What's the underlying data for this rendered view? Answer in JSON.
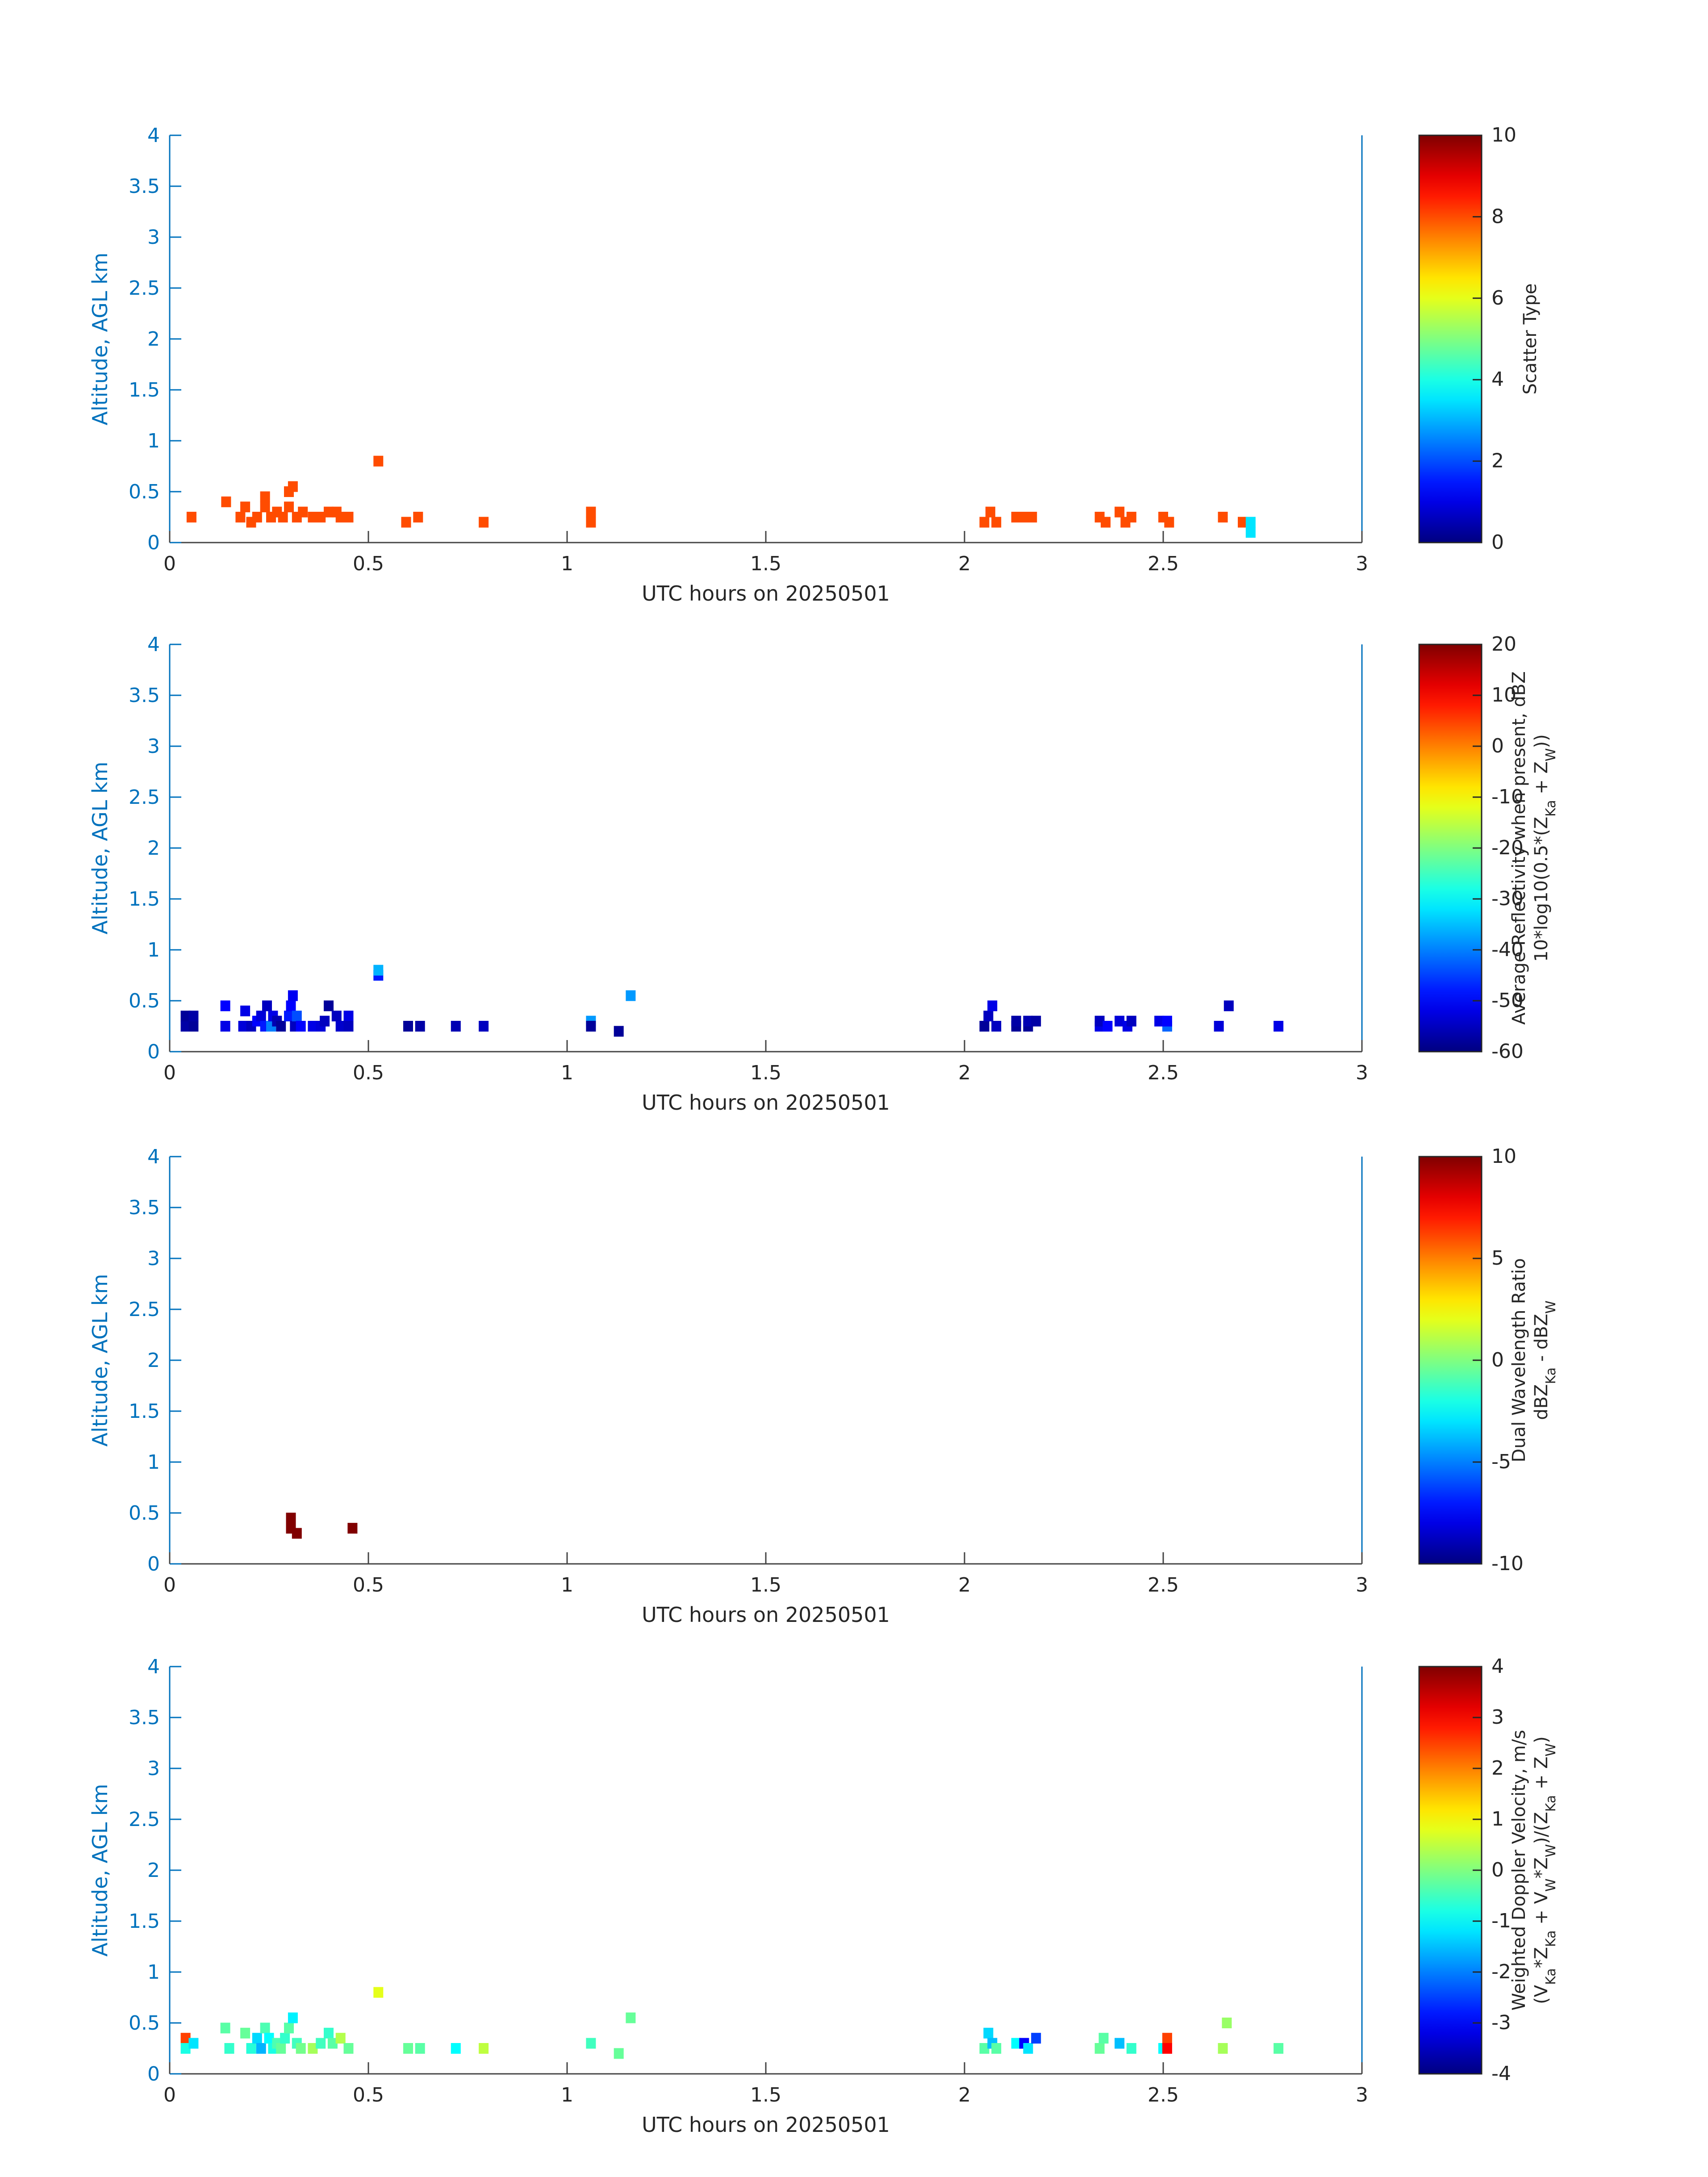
{
  "colors": {
    "axis_blue": "#0072bd",
    "tick_text_dark": "#262626",
    "background": "#ffffff"
  },
  "chart_data": [
    {
      "type": "heatmap",
      "xlabel": "UTC hours on 20250501",
      "ylabel": "Altitude, AGL km",
      "xlim": [
        0,
        3
      ],
      "ylim": [
        0,
        4
      ],
      "xticks": [
        "0",
        "0.5",
        "1",
        "1.5",
        "2",
        "2.5",
        "3"
      ],
      "yticks": [
        "0",
        "0.5",
        "1",
        "1.5",
        "2",
        "2.5",
        "3",
        "3.5",
        "4"
      ],
      "colormap": "jet",
      "clim": [
        0,
        10
      ],
      "colorbar_ticks": [
        "0",
        "2",
        "4",
        "6",
        "8",
        "10"
      ],
      "colorbar_label_lines": [
        "Scatter Type"
      ],
      "cells": [
        [
          0.055,
          0.25,
          8
        ],
        [
          0.142,
          0.4,
          8
        ],
        [
          0.178,
          0.25,
          8
        ],
        [
          0.19,
          0.35,
          8
        ],
        [
          0.205,
          0.2,
          8
        ],
        [
          0.22,
          0.25,
          8
        ],
        [
          0.24,
          0.35,
          8
        ],
        [
          0.24,
          0.45,
          8
        ],
        [
          0.255,
          0.25,
          8
        ],
        [
          0.27,
          0.3,
          8
        ],
        [
          0.285,
          0.25,
          8
        ],
        [
          0.3,
          0.35,
          8
        ],
        [
          0.3,
          0.5,
          8
        ],
        [
          0.31,
          0.55,
          8
        ],
        [
          0.32,
          0.25,
          8
        ],
        [
          0.335,
          0.3,
          8
        ],
        [
          0.36,
          0.25,
          8
        ],
        [
          0.38,
          0.25,
          8
        ],
        [
          0.4,
          0.3,
          8
        ],
        [
          0.42,
          0.3,
          8
        ],
        [
          0.43,
          0.25,
          8
        ],
        [
          0.45,
          0.25,
          8
        ],
        [
          0.525,
          0.8,
          8
        ],
        [
          0.595,
          0.2,
          8
        ],
        [
          0.625,
          0.25,
          8
        ],
        [
          0.79,
          0.2,
          8
        ],
        [
          1.06,
          0.3,
          8
        ],
        [
          1.06,
          0.2,
          8
        ],
        [
          2.05,
          0.2,
          8
        ],
        [
          2.065,
          0.3,
          8
        ],
        [
          2.08,
          0.2,
          8
        ],
        [
          2.13,
          0.25,
          8
        ],
        [
          2.15,
          0.25,
          8
        ],
        [
          2.17,
          0.25,
          8
        ],
        [
          2.34,
          0.25,
          8
        ],
        [
          2.355,
          0.2,
          8
        ],
        [
          2.39,
          0.3,
          8
        ],
        [
          2.405,
          0.2,
          8
        ],
        [
          2.42,
          0.25,
          8
        ],
        [
          2.5,
          0.25,
          8
        ],
        [
          2.515,
          0.2,
          8
        ],
        [
          2.65,
          0.25,
          8
        ],
        [
          2.7,
          0.2,
          8
        ],
        [
          2.72,
          0.2,
          3.5
        ],
        [
          2.72,
          0.1,
          3.5
        ]
      ]
    },
    {
      "type": "heatmap",
      "xlabel": "UTC hours on 20250501",
      "ylabel": "Altitude, AGL km",
      "xlim": [
        0,
        3
      ],
      "ylim": [
        0,
        4
      ],
      "xticks": [
        "0",
        "0.5",
        "1",
        "1.5",
        "2",
        "2.5",
        "3"
      ],
      "yticks": [
        "0",
        "0.5",
        "1",
        "1.5",
        "2",
        "2.5",
        "3",
        "3.5",
        "4"
      ],
      "colormap": "jet",
      "clim": [
        -60,
        20
      ],
      "colorbar_ticks": [
        "-60",
        "-50",
        "-40",
        "-30",
        "-20",
        "-10",
        "0",
        "10",
        "20"
      ],
      "colorbar_label_lines": [
        "Average Reflectivity when present, dBZ",
        "10*log10(0.5*(Z_Ka + Z_W))"
      ],
      "cells": [
        [
          0.04,
          0.25,
          -57
        ],
        [
          0.04,
          0.35,
          -58
        ],
        [
          0.06,
          0.25,
          -58
        ],
        [
          0.06,
          0.35,
          -57
        ],
        [
          0.14,
          0.25,
          -52
        ],
        [
          0.14,
          0.45,
          -50
        ],
        [
          0.185,
          0.25,
          -53
        ],
        [
          0.19,
          0.4,
          -52
        ],
        [
          0.205,
          0.25,
          -55
        ],
        [
          0.22,
          0.3,
          -50
        ],
        [
          0.23,
          0.35,
          -53
        ],
        [
          0.24,
          0.25,
          -48
        ],
        [
          0.245,
          0.45,
          -55
        ],
        [
          0.255,
          0.25,
          -40
        ],
        [
          0.26,
          0.35,
          -52
        ],
        [
          0.27,
          0.3,
          -56
        ],
        [
          0.28,
          0.25,
          -58
        ],
        [
          0.3,
          0.35,
          -48
        ],
        [
          0.305,
          0.45,
          -50
        ],
        [
          0.31,
          0.55,
          -51
        ],
        [
          0.315,
          0.25,
          -55
        ],
        [
          0.32,
          0.35,
          -44
        ],
        [
          0.33,
          0.25,
          -50
        ],
        [
          0.36,
          0.25,
          -52
        ],
        [
          0.38,
          0.25,
          -53
        ],
        [
          0.39,
          0.3,
          -55
        ],
        [
          0.4,
          0.45,
          -58
        ],
        [
          0.42,
          0.35,
          -55
        ],
        [
          0.43,
          0.25,
          -54
        ],
        [
          0.45,
          0.35,
          -52
        ],
        [
          0.45,
          0.25,
          -55
        ],
        [
          0.525,
          0.75,
          -48
        ],
        [
          0.525,
          0.8,
          -36
        ],
        [
          0.6,
          0.25,
          -58
        ],
        [
          0.63,
          0.25,
          -57
        ],
        [
          0.72,
          0.25,
          -56
        ],
        [
          0.79,
          0.25,
          -55
        ],
        [
          1.06,
          0.3,
          -38
        ],
        [
          1.06,
          0.25,
          -58
        ],
        [
          1.13,
          0.2,
          -58
        ],
        [
          1.16,
          0.55,
          -38
        ],
        [
          2.05,
          0.25,
          -58
        ],
        [
          2.06,
          0.35,
          -55
        ],
        [
          2.07,
          0.45,
          -52
        ],
        [
          2.08,
          0.25,
          -55
        ],
        [
          2.13,
          0.25,
          -58
        ],
        [
          2.13,
          0.3,
          -57
        ],
        [
          2.16,
          0.25,
          -58
        ],
        [
          2.16,
          0.3,
          -56
        ],
        [
          2.18,
          0.3,
          -57
        ],
        [
          2.34,
          0.25,
          -52
        ],
        [
          2.34,
          0.3,
          -55
        ],
        [
          2.36,
          0.25,
          -50
        ],
        [
          2.39,
          0.3,
          -53
        ],
        [
          2.41,
          0.25,
          -52
        ],
        [
          2.42,
          0.3,
          -55
        ],
        [
          2.49,
          0.3,
          -52
        ],
        [
          2.51,
          0.25,
          -42
        ],
        [
          2.51,
          0.3,
          -50
        ],
        [
          2.64,
          0.25,
          -53
        ],
        [
          2.665,
          0.45,
          -55
        ],
        [
          2.79,
          0.25,
          -52
        ]
      ]
    },
    {
      "type": "heatmap",
      "xlabel": "UTC hours on 20250501",
      "ylabel": "Altitude, AGL km",
      "xlim": [
        0,
        3
      ],
      "ylim": [
        0,
        4
      ],
      "xticks": [
        "0",
        "0.5",
        "1",
        "1.5",
        "2",
        "2.5",
        "3"
      ],
      "yticks": [
        "0",
        "0.5",
        "1",
        "1.5",
        "2",
        "2.5",
        "3",
        "3.5",
        "4"
      ],
      "colormap": "jet",
      "clim": [
        -10,
        10
      ],
      "colorbar_ticks": [
        "-10",
        "-5",
        "0",
        "5",
        "10"
      ],
      "colorbar_label_lines": [
        "Dual Wavelength Ratio",
        "dBZ_Ka - dBZ_W"
      ],
      "cells": [
        [
          0.305,
          0.45,
          10
        ],
        [
          0.305,
          0.35,
          10
        ],
        [
          0.32,
          0.3,
          10
        ],
        [
          0.46,
          0.35,
          10
        ]
      ]
    },
    {
      "type": "heatmap",
      "xlabel": "UTC hours on 20250501",
      "ylabel": "Altitude, AGL km",
      "xlim": [
        0,
        3
      ],
      "ylim": [
        0,
        4
      ],
      "xticks": [
        "0",
        "0.5",
        "1",
        "1.5",
        "2",
        "2.5",
        "3"
      ],
      "yticks": [
        "0",
        "0.5",
        "1",
        "1.5",
        "2",
        "2.5",
        "3",
        "3.5",
        "4"
      ],
      "colormap": "jet",
      "clim": [
        -4,
        4
      ],
      "colorbar_ticks": [
        "-4",
        "-3",
        "-2",
        "-1",
        "0",
        "1",
        "2",
        "3"
      ],
      "colorbar_tick_top": "4",
      "colorbar_label_lines": [
        "Weighted Doppler Velocity, m/s",
        "(V_Ka*Z_Ka + V_W*Z_W)/(Z_Ka + Z_W)"
      ],
      "cells": [
        [
          0.04,
          0.35,
          2.5
        ],
        [
          0.04,
          0.25,
          -0.8
        ],
        [
          0.06,
          0.3,
          -1.2
        ],
        [
          0.14,
          0.45,
          -0.3
        ],
        [
          0.15,
          0.25,
          -0.6
        ],
        [
          0.19,
          0.4,
          -0.2
        ],
        [
          0.205,
          0.25,
          -0.7
        ],
        [
          0.22,
          0.35,
          -1.3
        ],
        [
          0.23,
          0.25,
          -1.6
        ],
        [
          0.24,
          0.45,
          -0.4
        ],
        [
          0.25,
          0.35,
          -1.0
        ],
        [
          0.26,
          0.25,
          -0.8
        ],
        [
          0.27,
          0.3,
          -0.4
        ],
        [
          0.28,
          0.25,
          -0.2
        ],
        [
          0.29,
          0.35,
          -0.6
        ],
        [
          0.3,
          0.45,
          -0.3
        ],
        [
          0.31,
          0.55,
          -1.1
        ],
        [
          0.32,
          0.3,
          -0.5
        ],
        [
          0.33,
          0.25,
          -0.1
        ],
        [
          0.36,
          0.25,
          0.3
        ],
        [
          0.38,
          0.3,
          -0.5
        ],
        [
          0.4,
          0.4,
          -0.6
        ],
        [
          0.41,
          0.3,
          -0.3
        ],
        [
          0.43,
          0.35,
          0.4
        ],
        [
          0.45,
          0.25,
          -0.2
        ],
        [
          0.525,
          0.8,
          0.8
        ],
        [
          0.6,
          0.25,
          -0.2
        ],
        [
          0.63,
          0.25,
          -0.3
        ],
        [
          0.72,
          0.25,
          -1.0
        ],
        [
          0.79,
          0.25,
          0.5
        ],
        [
          1.06,
          0.3,
          -0.5
        ],
        [
          1.13,
          0.2,
          -0.2
        ],
        [
          1.16,
          0.55,
          -0.2
        ],
        [
          2.05,
          0.25,
          -0.3
        ],
        [
          2.06,
          0.4,
          -1.3
        ],
        [
          2.07,
          0.3,
          -1.5
        ],
        [
          2.08,
          0.25,
          -0.3
        ],
        [
          2.13,
          0.3,
          -1.0
        ],
        [
          2.15,
          0.3,
          -3.0
        ],
        [
          2.16,
          0.25,
          -1.2
        ],
        [
          2.18,
          0.35,
          -2.5
        ],
        [
          2.34,
          0.25,
          -0.2
        ],
        [
          2.35,
          0.35,
          -0.3
        ],
        [
          2.39,
          0.3,
          -1.5
        ],
        [
          2.42,
          0.25,
          -0.6
        ],
        [
          2.5,
          0.25,
          -1.0
        ],
        [
          2.51,
          0.35,
          2.5
        ],
        [
          2.51,
          0.25,
          3.0
        ],
        [
          2.65,
          0.25,
          0.3
        ],
        [
          2.66,
          0.5,
          0.2
        ],
        [
          2.79,
          0.25,
          -0.3
        ]
      ]
    }
  ]
}
